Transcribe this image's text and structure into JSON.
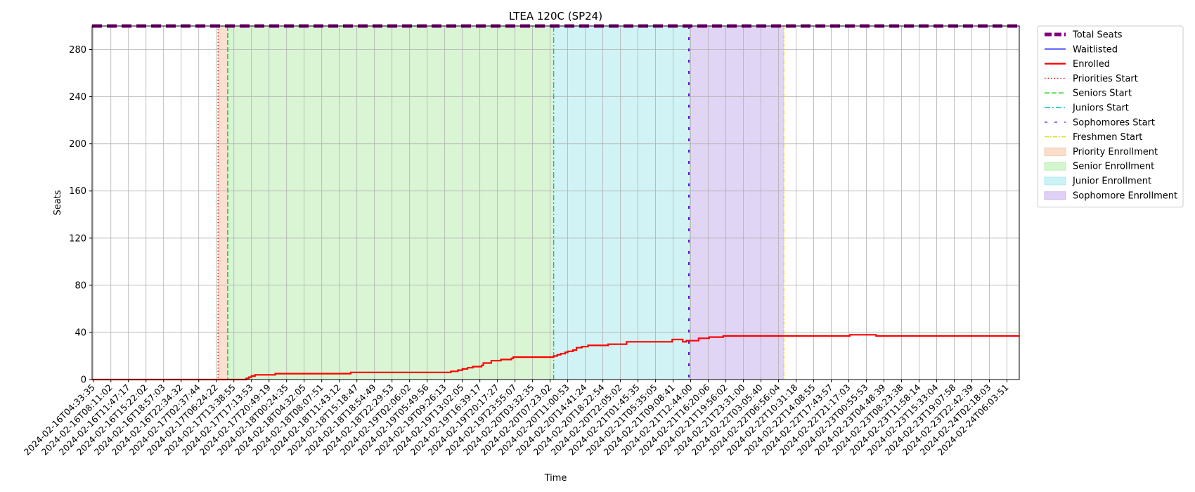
{
  "chart_data": {
    "type": "line",
    "title": "LTEA 120C (SP24)",
    "xlabel": "Time",
    "ylabel": "Seats",
    "ylim": [
      0,
      300
    ],
    "yticks": [
      0,
      40,
      80,
      120,
      160,
      200,
      240,
      280
    ],
    "grid": true,
    "legend_position": "outside-top-right",
    "xticks": [
      "2024-02-16T04:33:35",
      "2024-02-16T08:11:02",
      "2024-02-16T11:47:17",
      "2024-02-16T15:22:02",
      "2024-02-16T18:57:03",
      "2024-02-16T22:34:32",
      "2024-02-17T02:37:44",
      "2024-02-17T06:24:22",
      "2024-02-17T13:38:55",
      "2024-02-17T17:13:53",
      "2024-02-17T20:49:19",
      "2024-02-18T00:24:35",
      "2024-02-18T04:32:05",
      "2024-02-18T08:07:51",
      "2024-02-18T11:43:12",
      "2024-02-18T15:18:47",
      "2024-02-18T18:54:49",
      "2024-02-18T22:29:53",
      "2024-02-19T02:06:02",
      "2024-02-19T05:49:56",
      "2024-02-19T09:26:13",
      "2024-02-19T13:02:05",
      "2024-02-19T16:39:17",
      "2024-02-19T20:17:27",
      "2024-02-19T23:55:07",
      "2024-02-20T03:32:35",
      "2024-02-20T07:23:02",
      "2024-02-20T11:00:53",
      "2024-02-20T14:41:24",
      "2024-02-20T18:22:54",
      "2024-02-20T22:05:02",
      "2024-02-21T01:45:35",
      "2024-02-21T05:35:05",
      "2024-02-21T09:08:41",
      "2024-02-21T12:44:00",
      "2024-02-21T16:20:06",
      "2024-02-21T19:56:02",
      "2024-02-21T23:31:00",
      "2024-02-22T03:05:40",
      "2024-02-22T06:56:04",
      "2024-02-22T10:31:18",
      "2024-02-22T14:08:55",
      "2024-02-22T17:43:57",
      "2024-02-22T21:17:03",
      "2024-02-23T00:55:53",
      "2024-02-23T04:48:39",
      "2024-02-23T08:23:38",
      "2024-02-23T11:58:14",
      "2024-02-23T15:33:04",
      "2024-02-23T19:07:58",
      "2024-02-23T22:42:39",
      "2024-02-24T02:18:03",
      "2024-02-24T06:03:51"
    ],
    "x_range": [
      -0.07,
      52.7
    ],
    "series": [
      {
        "name": "Total Seats",
        "color": "#800080",
        "style": "dashed-thick",
        "points": [
          [
            -0.07,
            300
          ],
          [
            52.7,
            300
          ]
        ]
      },
      {
        "name": "Waitlisted",
        "color": "#0000ff",
        "style": "solid-thin",
        "points": []
      },
      {
        "name": "Enrolled",
        "color": "#ff0000",
        "style": "solid",
        "points": [
          [
            -0.07,
            0
          ],
          [
            8.6,
            0
          ],
          [
            8.7,
            1
          ],
          [
            8.85,
            2
          ],
          [
            9.0,
            3
          ],
          [
            9.2,
            4
          ],
          [
            10.3,
            4
          ],
          [
            10.35,
            5
          ],
          [
            14.6,
            5
          ],
          [
            14.65,
            6
          ],
          [
            20.3,
            6
          ],
          [
            20.35,
            7
          ],
          [
            20.75,
            8
          ],
          [
            21.0,
            9
          ],
          [
            21.3,
            10
          ],
          [
            21.6,
            11
          ],
          [
            22.1,
            12
          ],
          [
            22.2,
            14
          ],
          [
            22.6,
            14
          ],
          [
            22.65,
            16
          ],
          [
            23.1,
            16
          ],
          [
            23.2,
            17
          ],
          [
            23.8,
            18
          ],
          [
            23.9,
            19
          ],
          [
            26.1,
            19
          ],
          [
            26.2,
            20
          ],
          [
            26.4,
            21
          ],
          [
            26.6,
            22
          ],
          [
            26.85,
            23
          ],
          [
            27.0,
            24
          ],
          [
            27.3,
            25
          ],
          [
            27.5,
            27
          ],
          [
            27.8,
            28
          ],
          [
            28.1,
            28
          ],
          [
            28.15,
            29
          ],
          [
            29.2,
            29
          ],
          [
            29.3,
            30
          ],
          [
            30.3,
            30
          ],
          [
            30.35,
            32
          ],
          [
            32.9,
            32
          ],
          [
            32.95,
            34
          ],
          [
            33.3,
            34
          ],
          [
            33.55,
            32
          ],
          [
            33.75,
            33
          ],
          [
            34.4,
            33
          ],
          [
            34.45,
            35
          ],
          [
            35.0,
            35
          ],
          [
            35.05,
            36
          ],
          [
            35.8,
            36
          ],
          [
            35.85,
            37
          ],
          [
            43.0,
            37
          ],
          [
            43.05,
            38
          ],
          [
            44.5,
            38
          ],
          [
            44.55,
            37
          ],
          [
            52.7,
            37
          ]
        ]
      }
    ],
    "vertical_lines": [
      {
        "name": "Priorities Start",
        "x": 7.1,
        "color": "#ff0000",
        "style": "dotted"
      },
      {
        "name": "Seniors Start",
        "x": 7.65,
        "color": "#00cc00",
        "style": "dashed"
      },
      {
        "name": "Juniors Start",
        "x": 26.2,
        "color": "#00bfbf",
        "style": "dashdot"
      },
      {
        "name": "Sophomores Start",
        "x": 33.9,
        "color": "#5500dd",
        "style": "loosedash"
      },
      {
        "name": "Freshmen Start",
        "x": 39.3,
        "color": "#dddd00",
        "style": "dashdot-thin"
      }
    ],
    "spans": [
      {
        "name": "Priority Enrollment",
        "x0": 7.1,
        "x1": 7.65,
        "color": "#f5c2a0"
      },
      {
        "name": "Senior Enrollment",
        "x0": 7.65,
        "x1": 26.2,
        "color": "#b3ecaa"
      },
      {
        "name": "Junior Enrollment",
        "x0": 26.2,
        "x1": 33.9,
        "color": "#a3e8ec"
      },
      {
        "name": "Sophomore Enrollment",
        "x0": 33.9,
        "x1": 39.3,
        "color": "#c4acec"
      }
    ]
  }
}
